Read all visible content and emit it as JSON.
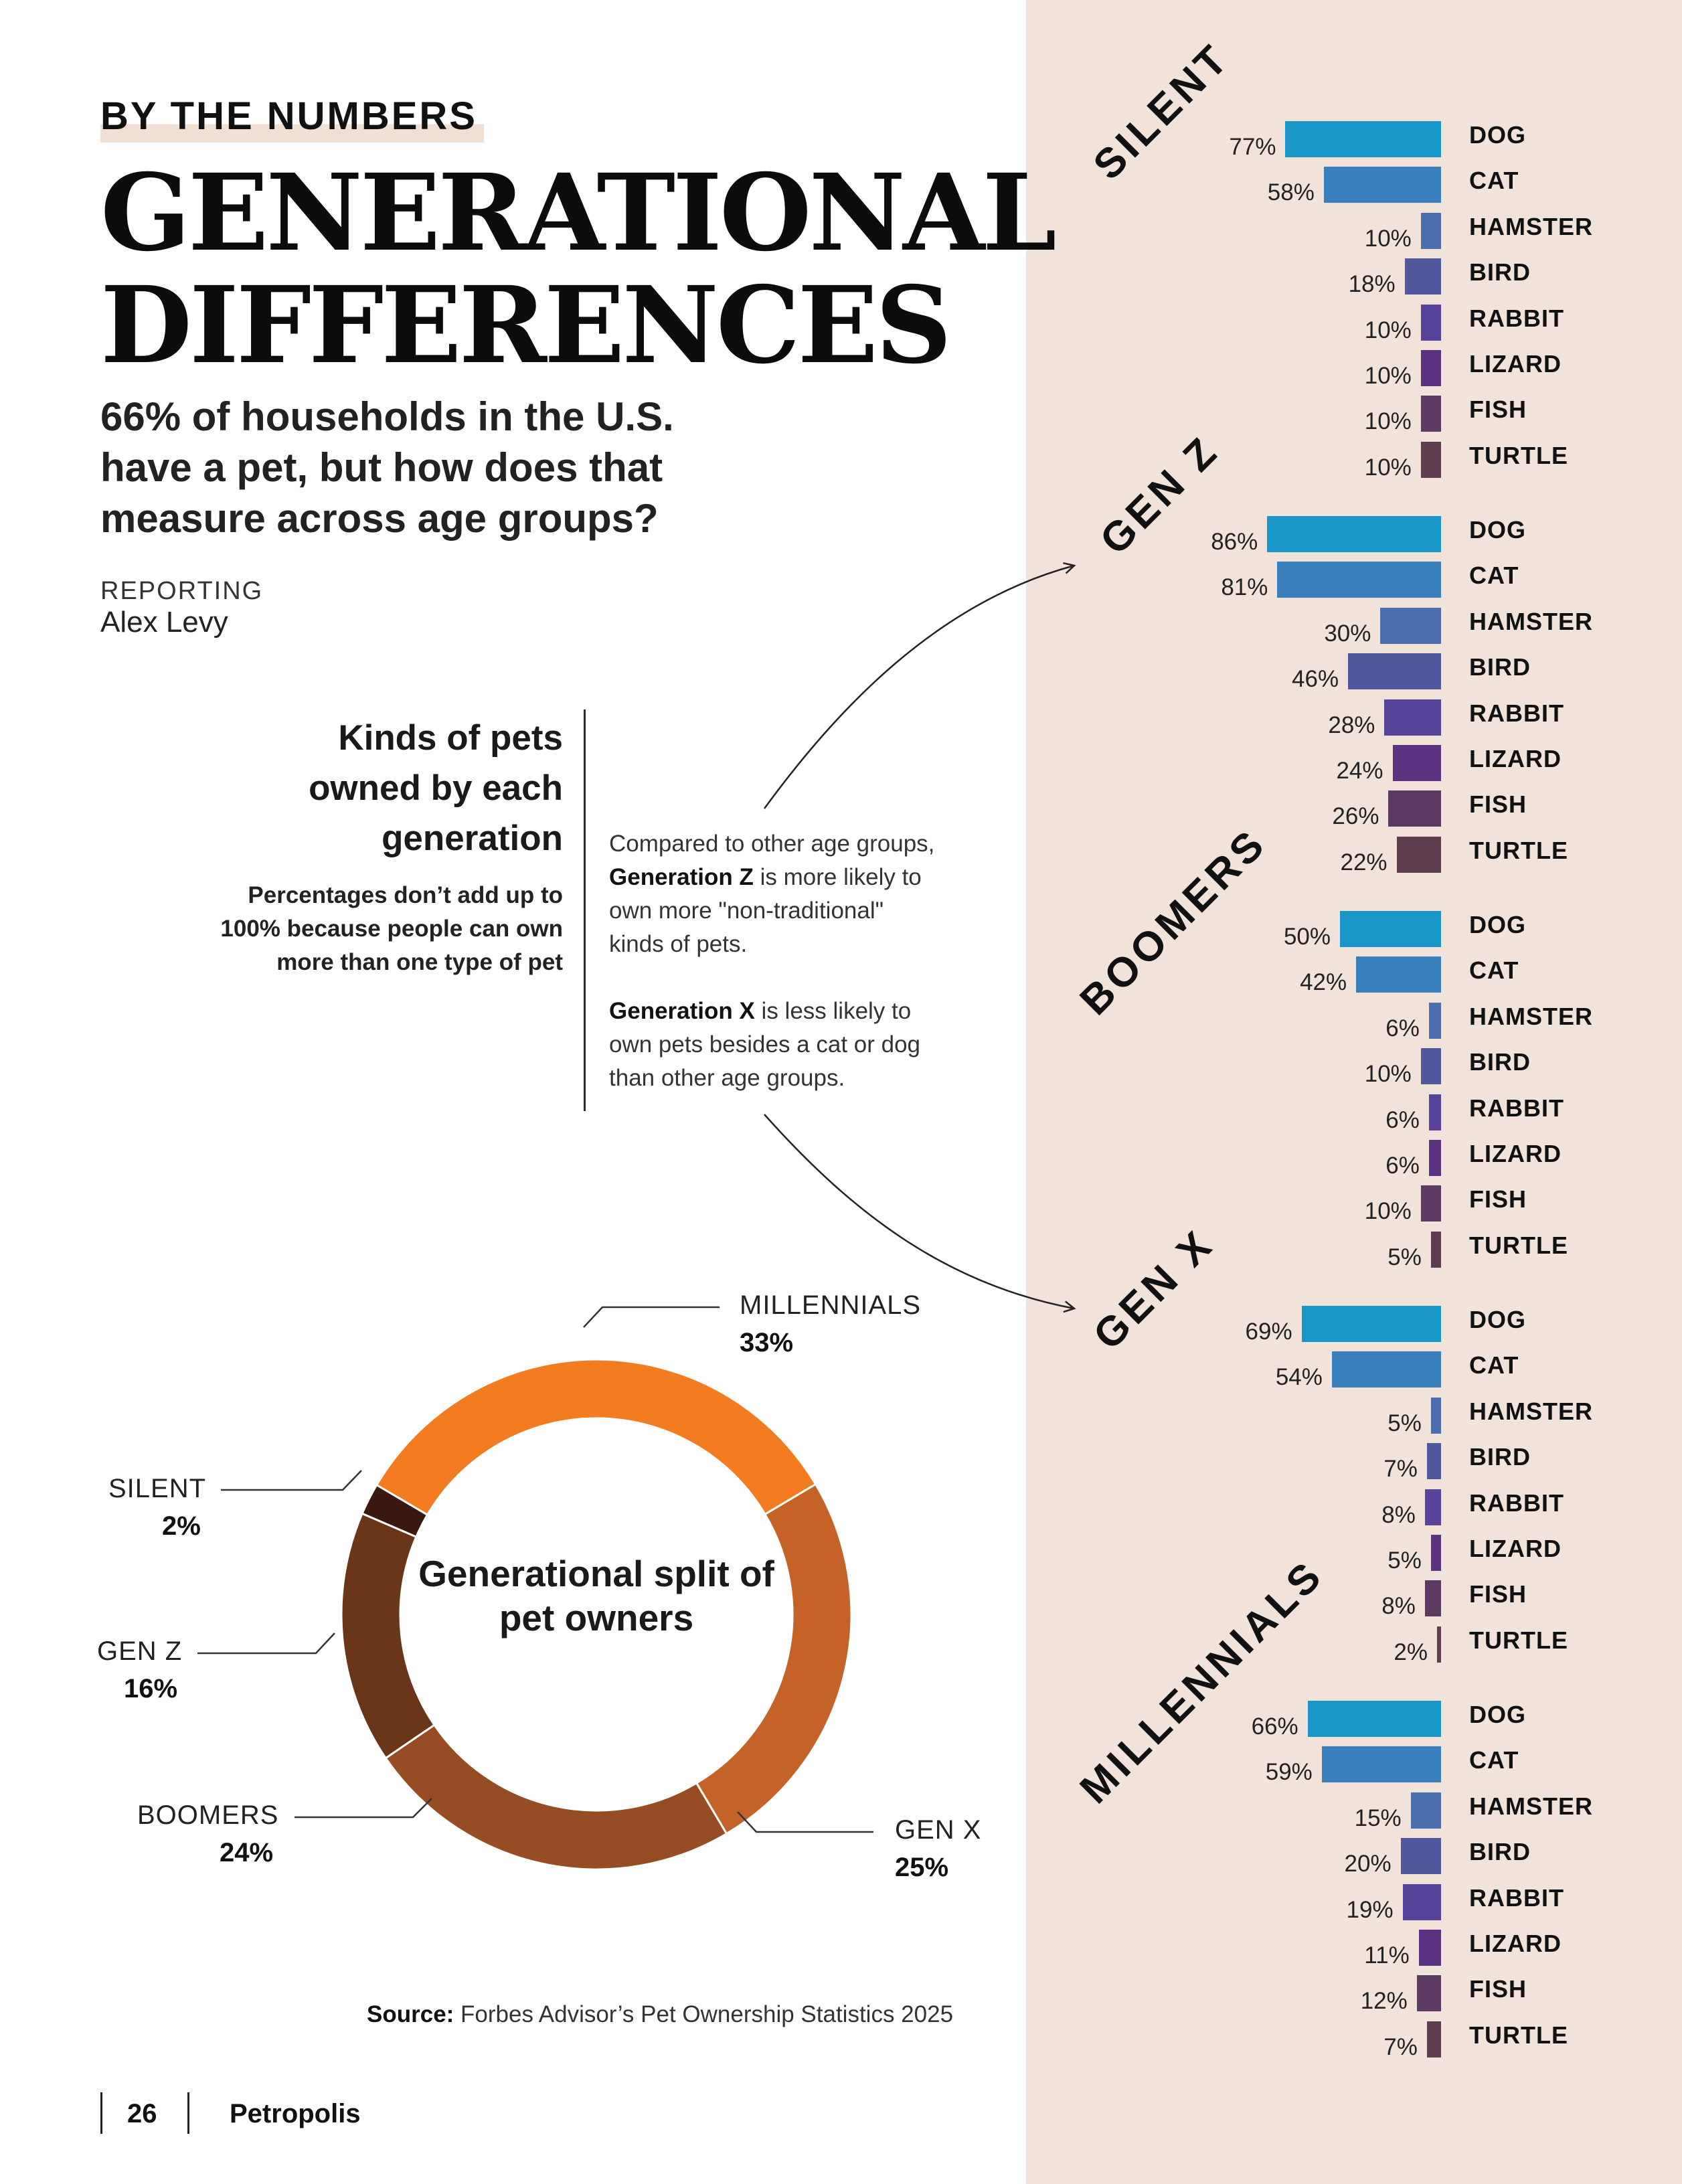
{
  "header": {
    "kicker": "BY THE NUMBERS",
    "headline_line1": "GENERATIONAL",
    "headline_line2": "DIFFERENCES",
    "dek_line1": "66% of households in the U.S.",
    "dek_line2": "have a pet, but how does that",
    "dek_line3": "measure across age groups?",
    "reporting_label": "REPORTING",
    "reporter": "Alex Levy"
  },
  "sidebar": {
    "title_line1": "Kinds of pets",
    "title_line2": "owned by each",
    "title_line3": "generation",
    "note_line1": "Percentages don’t add up to",
    "note_line2": "100% because people can own",
    "note_line3": "more than one type of pet",
    "callout1_line1": "Compared to other age groups,",
    "callout1_bold": "Generation Z",
    "callout1_line2_rest": " is more likely to",
    "callout1_line3": "own more \"non-traditional\"",
    "callout1_line4": "kinds of pets.",
    "callout2_bold": "Generation X",
    "callout2_line1_rest": " is less likely to",
    "callout2_line2": "own pets besides a cat or dog",
    "callout2_line3": "than other age groups."
  },
  "chart_data": [
    {
      "type": "bar",
      "orientation": "horizontal",
      "title": "Kinds of pets owned by each generation",
      "categories": [
        "DOG",
        "CAT",
        "HAMSTER",
        "BIRD",
        "RABBIT",
        "LIZARD",
        "FISH",
        "TURTLE"
      ],
      "category_colors": [
        "#1896c8",
        "#3a80bd",
        "#4a6eae",
        "#51579c",
        "#58439a",
        "#5a3483",
        "#5b3a63",
        "#5d3e4f"
      ],
      "xlim": [
        0,
        100
      ],
      "series": [
        {
          "name": "SILENT",
          "values": [
            77,
            58,
            10,
            18,
            10,
            10,
            10,
            10
          ]
        },
        {
          "name": "GEN Z",
          "values": [
            86,
            81,
            30,
            46,
            28,
            24,
            26,
            22
          ]
        },
        {
          "name": "BOOMERS",
          "values": [
            50,
            42,
            6,
            10,
            6,
            6,
            10,
            5
          ]
        },
        {
          "name": "GEN X",
          "values": [
            69,
            54,
            5,
            7,
            8,
            5,
            8,
            2
          ]
        },
        {
          "name": "MILLENNIALS",
          "values": [
            66,
            59,
            15,
            20,
            19,
            11,
            12,
            7
          ]
        }
      ]
    },
    {
      "type": "pie",
      "style": "donut",
      "title": "Generational split of pet owners",
      "slices": [
        {
          "name": "MILLENNIALS",
          "label": "33%",
          "value": 33,
          "color": "#f47c20"
        },
        {
          "name": "GEN X",
          "label": "25%",
          "value": 25,
          "color": "#c46228"
        },
        {
          "name": "BOOMERS",
          "label": "24%",
          "value": 24,
          "color": "#964d23"
        },
        {
          "name": "GEN Z",
          "label": "16%",
          "value": 16,
          "color": "#6a3619"
        },
        {
          "name": "SILENT",
          "label": "2%",
          "value": 2,
          "color": "#3a1a10"
        }
      ]
    }
  ],
  "source": {
    "label": "Source:",
    "text": " Forbes Advisor’s Pet Ownership Statistics 2025"
  },
  "footer": {
    "page": "26",
    "publication": "Petropolis"
  }
}
